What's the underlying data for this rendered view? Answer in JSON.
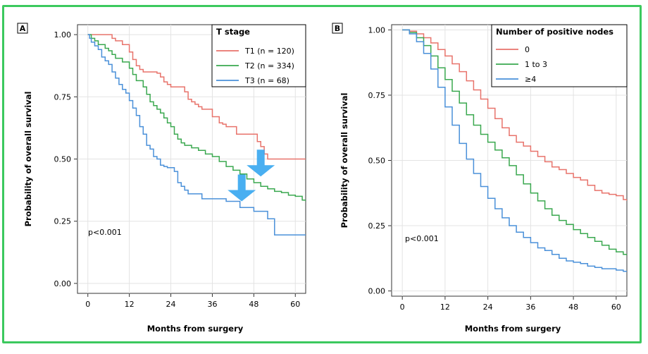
{
  "chart_data": [
    {
      "type": "line",
      "panel_label": "A",
      "xlabel": "Months from surgery",
      "ylabel": "Probability of overall survival",
      "xlim": [
        -3,
        63
      ],
      "ylim": [
        -0.04,
        1.04
      ],
      "xticks": [
        0,
        12,
        24,
        36,
        48,
        60
      ],
      "yticks": [
        0.0,
        0.25,
        0.5,
        0.75,
        1.0
      ],
      "ytick_labels": [
        "0.00",
        "0.25",
        "0.50",
        "0.75",
        "1.00"
      ],
      "grid": true,
      "legend": {
        "title": "T stage",
        "placement": "top-right"
      },
      "annotation": "p<0.001",
      "arrows": [
        {
          "x": 50,
          "y": 0.43,
          "color": "#3aa8f0"
        },
        {
          "x": 44.5,
          "y": 0.33,
          "color": "#3aa8f0"
        }
      ],
      "series": [
        {
          "name": "T1 (n = 120)",
          "color": "#e8736b",
          "points": [
            [
              0,
              1.0
            ],
            [
              6,
              1.0
            ],
            [
              7,
              0.985
            ],
            [
              8,
              0.975
            ],
            [
              10,
              0.96
            ],
            [
              12,
              0.93
            ],
            [
              13,
              0.9
            ],
            [
              14,
              0.875
            ],
            [
              15,
              0.86
            ],
            [
              16,
              0.85
            ],
            [
              20,
              0.845
            ],
            [
              21,
              0.83
            ],
            [
              22,
              0.81
            ],
            [
              23,
              0.8
            ],
            [
              24,
              0.79
            ],
            [
              28,
              0.77
            ],
            [
              29,
              0.74
            ],
            [
              30,
              0.73
            ],
            [
              31,
              0.72
            ],
            [
              32,
              0.71
            ],
            [
              33,
              0.7
            ],
            [
              36,
              0.67
            ],
            [
              38,
              0.645
            ],
            [
              39,
              0.64
            ],
            [
              40,
              0.63
            ],
            [
              43,
              0.6
            ],
            [
              49,
              0.57
            ],
            [
              50,
              0.55
            ],
            [
              51,
              0.52
            ],
            [
              52,
              0.5
            ],
            [
              63,
              0.5
            ]
          ]
        },
        {
          "name": "T2 (n = 334)",
          "color": "#3aa84f",
          "points": [
            [
              0,
              1.0
            ],
            [
              1,
              0.985
            ],
            [
              2,
              0.975
            ],
            [
              3,
              0.96
            ],
            [
              5,
              0.945
            ],
            [
              6,
              0.935
            ],
            [
              7,
              0.92
            ],
            [
              8,
              0.905
            ],
            [
              10,
              0.89
            ],
            [
              12,
              0.865
            ],
            [
              13,
              0.84
            ],
            [
              14,
              0.815
            ],
            [
              16,
              0.79
            ],
            [
              17,
              0.76
            ],
            [
              18,
              0.73
            ],
            [
              19,
              0.715
            ],
            [
              20,
              0.7
            ],
            [
              21,
              0.685
            ],
            [
              22,
              0.665
            ],
            [
              23,
              0.645
            ],
            [
              24,
              0.63
            ],
            [
              25,
              0.6
            ],
            [
              26,
              0.58
            ],
            [
              27,
              0.565
            ],
            [
              28,
              0.555
            ],
            [
              30,
              0.545
            ],
            [
              32,
              0.535
            ],
            [
              34,
              0.52
            ],
            [
              36,
              0.51
            ],
            [
              38,
              0.49
            ],
            [
              40,
              0.47
            ],
            [
              42,
              0.455
            ],
            [
              44,
              0.44
            ],
            [
              46,
              0.42
            ],
            [
              48,
              0.405
            ],
            [
              50,
              0.39
            ],
            [
              52,
              0.38
            ],
            [
              54,
              0.37
            ],
            [
              56,
              0.365
            ],
            [
              58,
              0.355
            ],
            [
              60,
              0.35
            ],
            [
              62,
              0.335
            ],
            [
              63,
              0.33
            ]
          ]
        },
        {
          "name": "T3 (n = 68)",
          "color": "#4a90d9",
          "points": [
            [
              0,
              1.0
            ],
            [
              0.5,
              0.985
            ],
            [
              1,
              0.97
            ],
            [
              2,
              0.955
            ],
            [
              3,
              0.94
            ],
            [
              4,
              0.91
            ],
            [
              5,
              0.895
            ],
            [
              6,
              0.88
            ],
            [
              7,
              0.85
            ],
            [
              8,
              0.825
            ],
            [
              9,
              0.8
            ],
            [
              10,
              0.78
            ],
            [
              11,
              0.765
            ],
            [
              12,
              0.735
            ],
            [
              13,
              0.705
            ],
            [
              14,
              0.675
            ],
            [
              15,
              0.63
            ],
            [
              16,
              0.6
            ],
            [
              17,
              0.555
            ],
            [
              18,
              0.54
            ],
            [
              19,
              0.51
            ],
            [
              20,
              0.5
            ],
            [
              21,
              0.475
            ],
            [
              22,
              0.47
            ],
            [
              23,
              0.465
            ],
            [
              25,
              0.45
            ],
            [
              26,
              0.405
            ],
            [
              27,
              0.39
            ],
            [
              28,
              0.375
            ],
            [
              29,
              0.36
            ],
            [
              33,
              0.34
            ],
            [
              40,
              0.33
            ],
            [
              44,
              0.305
            ],
            [
              48,
              0.29
            ],
            [
              52,
              0.26
            ],
            [
              54,
              0.195
            ],
            [
              63,
              0.195
            ]
          ]
        }
      ]
    },
    {
      "type": "line",
      "panel_label": "B",
      "xlabel": "Months from surgery",
      "ylabel": "Probability of overall survival",
      "xlim": [
        -3,
        63
      ],
      "ylim": [
        -0.02,
        1.02
      ],
      "xticks": [
        0,
        12,
        24,
        36,
        48,
        60
      ],
      "yticks": [
        0.0,
        0.25,
        0.5,
        0.75,
        1.0
      ],
      "ytick_labels": [
        "0.00",
        "0.25",
        "0.50",
        "0.75",
        "1.00"
      ],
      "grid": true,
      "legend": {
        "title": "Number of positive nodes",
        "placement": "top-right"
      },
      "annotation": "p<0.001",
      "series": [
        {
          "name": "0",
          "color": "#e8736b",
          "points": [
            [
              0,
              1.0
            ],
            [
              2,
              0.995
            ],
            [
              4,
              0.985
            ],
            [
              6,
              0.97
            ],
            [
              8,
              0.95
            ],
            [
              10,
              0.925
            ],
            [
              12,
              0.9
            ],
            [
              14,
              0.87
            ],
            [
              16,
              0.84
            ],
            [
              18,
              0.805
            ],
            [
              20,
              0.77
            ],
            [
              22,
              0.735
            ],
            [
              24,
              0.7
            ],
            [
              26,
              0.66
            ],
            [
              28,
              0.625
            ],
            [
              30,
              0.595
            ],
            [
              32,
              0.57
            ],
            [
              34,
              0.555
            ],
            [
              36,
              0.535
            ],
            [
              38,
              0.515
            ],
            [
              40,
              0.495
            ],
            [
              42,
              0.475
            ],
            [
              44,
              0.465
            ],
            [
              46,
              0.45
            ],
            [
              48,
              0.435
            ],
            [
              50,
              0.425
            ],
            [
              52,
              0.405
            ],
            [
              54,
              0.385
            ],
            [
              56,
              0.375
            ],
            [
              58,
              0.37
            ],
            [
              60,
              0.365
            ],
            [
              62,
              0.35
            ],
            [
              63,
              0.345
            ]
          ]
        },
        {
          "name": "1 to 3",
          "color": "#3aa84f",
          "points": [
            [
              0,
              1.0
            ],
            [
              2,
              0.99
            ],
            [
              4,
              0.97
            ],
            [
              6,
              0.94
            ],
            [
              8,
              0.9
            ],
            [
              10,
              0.855
            ],
            [
              12,
              0.81
            ],
            [
              14,
              0.765
            ],
            [
              16,
              0.72
            ],
            [
              18,
              0.675
            ],
            [
              20,
              0.635
            ],
            [
              22,
              0.6
            ],
            [
              24,
              0.57
            ],
            [
              26,
              0.54
            ],
            [
              28,
              0.51
            ],
            [
              30,
              0.48
            ],
            [
              32,
              0.445
            ],
            [
              34,
              0.41
            ],
            [
              36,
              0.375
            ],
            [
              38,
              0.345
            ],
            [
              40,
              0.315
            ],
            [
              42,
              0.29
            ],
            [
              44,
              0.27
            ],
            [
              46,
              0.255
            ],
            [
              48,
              0.235
            ],
            [
              50,
              0.22
            ],
            [
              52,
              0.205
            ],
            [
              54,
              0.19
            ],
            [
              56,
              0.175
            ],
            [
              58,
              0.16
            ],
            [
              60,
              0.15
            ],
            [
              62,
              0.14
            ],
            [
              63,
              0.135
            ]
          ]
        },
        {
          "name": "≥4",
          "color": "#4a90d9",
          "points": [
            [
              0,
              1.0
            ],
            [
              2,
              0.985
            ],
            [
              4,
              0.955
            ],
            [
              6,
              0.91
            ],
            [
              8,
              0.85
            ],
            [
              10,
              0.78
            ],
            [
              12,
              0.705
            ],
            [
              14,
              0.635
            ],
            [
              16,
              0.565
            ],
            [
              18,
              0.505
            ],
            [
              20,
              0.45
            ],
            [
              22,
              0.4
            ],
            [
              24,
              0.355
            ],
            [
              26,
              0.315
            ],
            [
              28,
              0.28
            ],
            [
              30,
              0.25
            ],
            [
              32,
              0.225
            ],
            [
              34,
              0.205
            ],
            [
              36,
              0.185
            ],
            [
              38,
              0.165
            ],
            [
              40,
              0.155
            ],
            [
              42,
              0.14
            ],
            [
              44,
              0.125
            ],
            [
              46,
              0.115
            ],
            [
              48,
              0.11
            ],
            [
              50,
              0.105
            ],
            [
              52,
              0.095
            ],
            [
              54,
              0.09
            ],
            [
              56,
              0.085
            ],
            [
              58,
              0.085
            ],
            [
              60,
              0.08
            ],
            [
              62,
              0.075
            ],
            [
              63,
              0.075
            ]
          ]
        }
      ]
    }
  ]
}
